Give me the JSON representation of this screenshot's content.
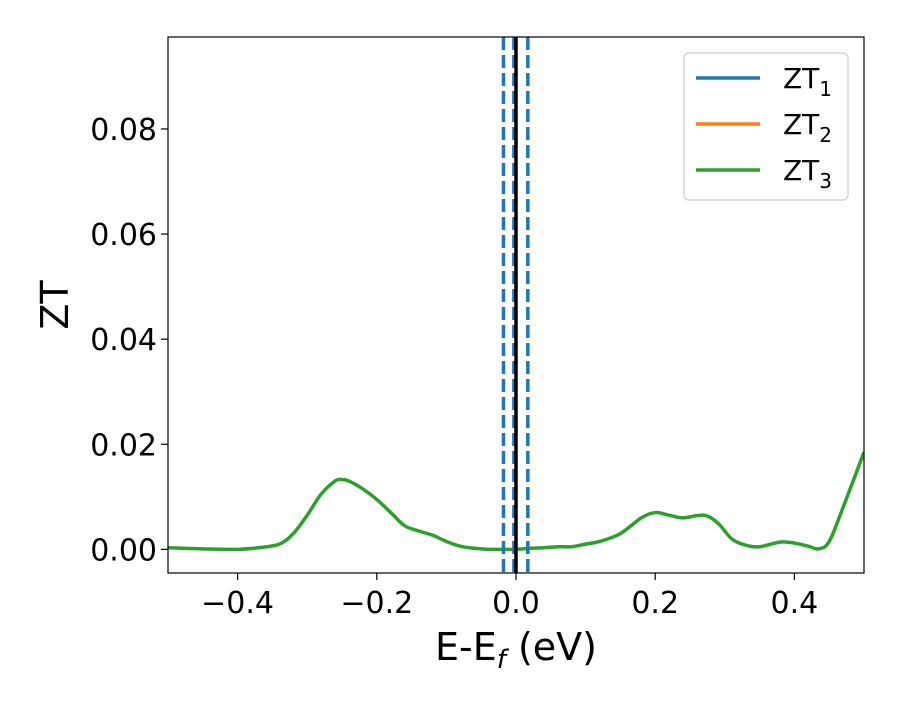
{
  "chart_data": {
    "type": "line",
    "title": "",
    "xlabel": {
      "main": "E-E",
      "sub": "f",
      "unit": " (eV)"
    },
    "ylabel": "ZT",
    "xlim": [
      -0.5,
      0.5
    ],
    "ylim": [
      -0.0045,
      0.0975
    ],
    "x_ticks": [
      -0.4,
      -0.2,
      0.0,
      0.2,
      0.4
    ],
    "x_tick_labels": [
      "−0.4",
      "−0.2",
      "0.0",
      "0.2",
      "0.4"
    ],
    "y_ticks": [
      0.0,
      0.02,
      0.04,
      0.06,
      0.08
    ],
    "y_tick_labels": [
      "0.00",
      "0.02",
      "0.04",
      "0.06",
      "0.08"
    ],
    "grid": false,
    "legend_position": "top-right",
    "series": [
      {
        "name": "ZT",
        "sub": "1",
        "color": "#1f77b4",
        "x": [],
        "y": []
      },
      {
        "name": "ZT",
        "sub": "2",
        "color": "#ff7f0e",
        "x": [],
        "y": []
      },
      {
        "name": "ZT",
        "sub": "3",
        "color": "#2ca02c",
        "x": [
          -0.5,
          -0.45,
          -0.4,
          -0.37,
          -0.34,
          -0.32,
          -0.3,
          -0.28,
          -0.26,
          -0.25,
          -0.24,
          -0.22,
          -0.2,
          -0.18,
          -0.16,
          -0.14,
          -0.12,
          -0.1,
          -0.08,
          -0.06,
          -0.04,
          -0.02,
          0.0,
          0.02,
          0.04,
          0.06,
          0.08,
          0.1,
          0.12,
          0.15,
          0.18,
          0.2,
          0.22,
          0.24,
          0.27,
          0.29,
          0.31,
          0.33,
          0.35,
          0.38,
          0.4,
          0.42,
          0.435,
          0.45,
          0.47,
          0.5
        ],
        "y": [
          0.0003,
          0.0001,
          0.0,
          0.0003,
          0.001,
          0.003,
          0.0065,
          0.0105,
          0.013,
          0.0133,
          0.013,
          0.0115,
          0.0095,
          0.007,
          0.0045,
          0.0035,
          0.0027,
          0.0015,
          0.0006,
          0.0002,
          0.0,
          0.0,
          0.0,
          0.0002,
          0.0003,
          0.0005,
          0.0005,
          0.001,
          0.0015,
          0.003,
          0.006,
          0.007,
          0.0065,
          0.006,
          0.0065,
          0.005,
          0.002,
          0.0008,
          0.0005,
          0.0014,
          0.0012,
          0.0006,
          0.0001,
          0.0015,
          0.008,
          0.0185
        ]
      }
    ],
    "vertical_lines": [
      {
        "x": -0.018,
        "style": "dashed",
        "color": "#1f77b4"
      },
      {
        "x": -0.003,
        "style": "dashed",
        "color": "#1f77b4"
      },
      {
        "x": 0.017,
        "style": "dashed",
        "color": "#1f77b4"
      },
      {
        "x": 0.0,
        "style": "solid",
        "color": "#000000"
      }
    ]
  }
}
